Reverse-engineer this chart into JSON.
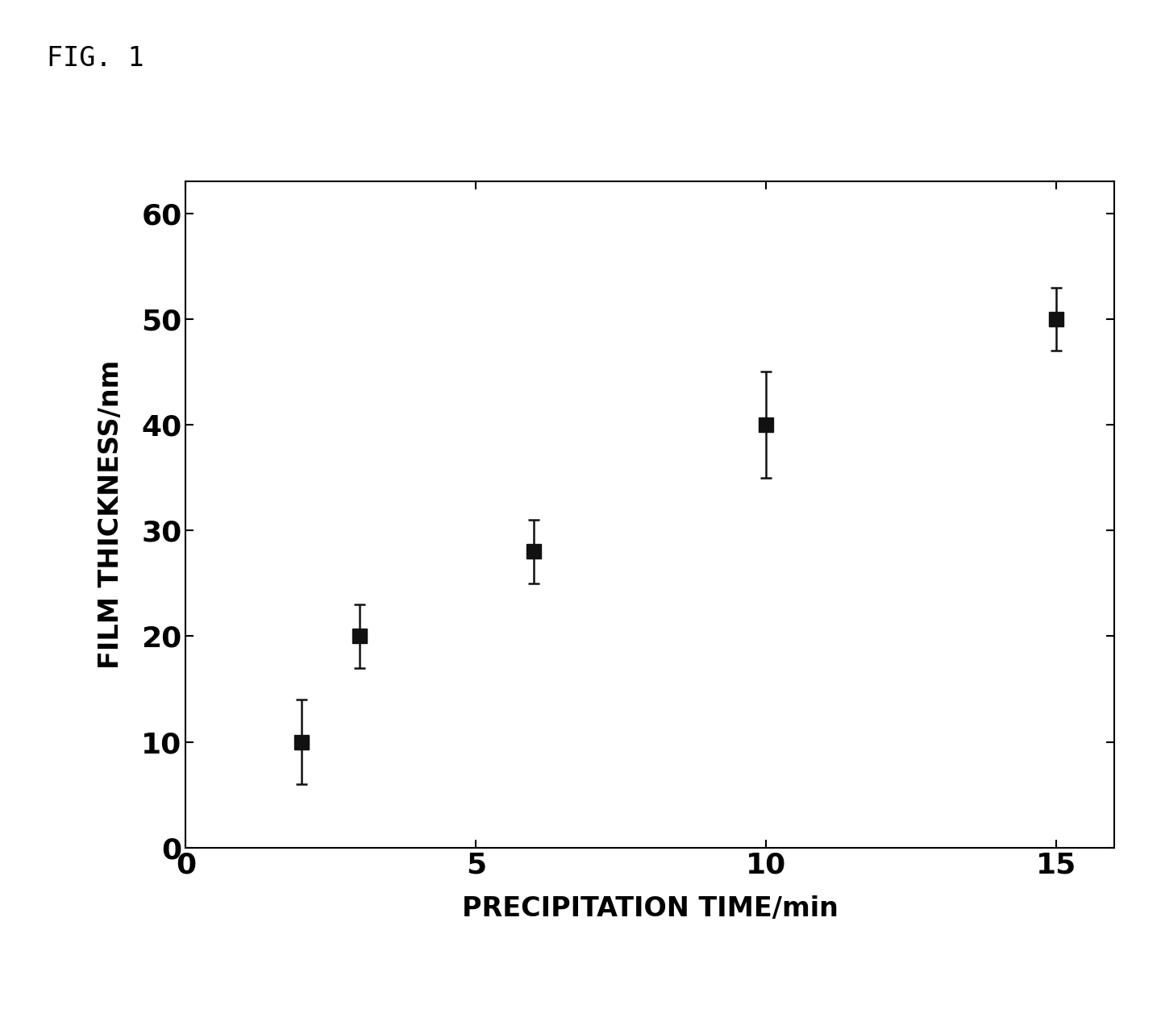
{
  "x": [
    2,
    3,
    6,
    10,
    15
  ],
  "y": [
    10,
    20,
    28,
    40,
    50
  ],
  "yerr": [
    4,
    3,
    3,
    5,
    3
  ],
  "xlabel": "PRECIPITATION TIME/min",
  "ylabel": "FILM THICKNESS/nm",
  "fig_label": "FIG. 1",
  "xlim": [
    0,
    16
  ],
  "ylim": [
    0,
    63
  ],
  "xticks": [
    0,
    5,
    10,
    15
  ],
  "yticks": [
    0,
    10,
    20,
    30,
    40,
    50,
    60
  ],
  "marker_color": "#111111",
  "marker_size": 13,
  "capsize": 5,
  "elinewidth": 1.8,
  "capthick": 1.8,
  "background_color": "#ffffff",
  "axis_bg_color": "#ffffff",
  "tick_label_fontsize": 26,
  "axis_label_fontsize": 24,
  "fig_label_fontsize": 24,
  "spine_linewidth": 1.5
}
